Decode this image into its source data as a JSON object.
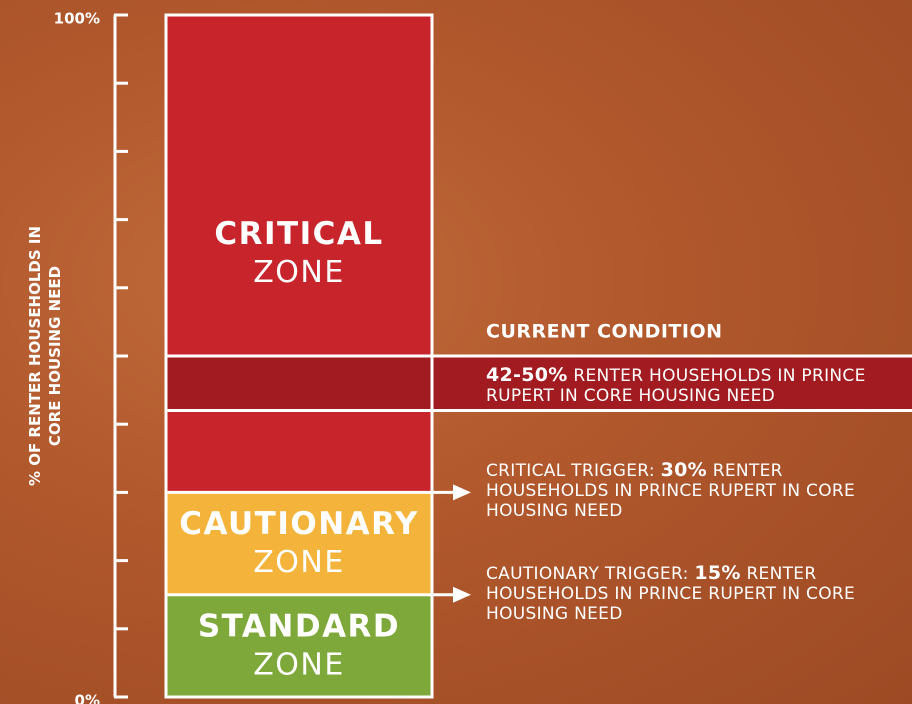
{
  "chart_data": {
    "type": "zones",
    "ylabel": [
      "% OF RENTER HOUSEHOLDS IN",
      "CORE HOUSING NEED"
    ],
    "ylim": [
      0,
      100
    ],
    "yticks": [
      {
        "value": 0,
        "label": "0%"
      },
      {
        "value": 100,
        "label": "100%"
      }
    ],
    "minor_yticks": [
      10,
      20,
      30,
      40,
      50,
      60,
      70,
      80,
      90
    ],
    "zones": [
      {
        "name": "STANDARD",
        "suffix": "ZONE",
        "from": 0,
        "to": 15,
        "color": "#7ea83a"
      },
      {
        "name": "CAUTIONARY",
        "suffix": "ZONE",
        "from": 15,
        "to": 30,
        "color": "#f4b33a"
      },
      {
        "name": "CRITICAL",
        "suffix": "ZONE",
        "from": 30,
        "to": 100,
        "color": "#c8242b"
      }
    ],
    "current": {
      "title": "CURRENT CONDITION",
      "from": 42,
      "to": 50,
      "value_label": "42-50%",
      "text": "RENTER HOUSEHOLDS IN PRINCE RUPERT IN CORE HOUSING NEED",
      "color": "#a11b20"
    },
    "triggers": [
      {
        "prefix": "CRITICAL TRIGGER:",
        "value": 30,
        "value_label": "30%",
        "text": "RENTER HOUSEHOLDS IN PRINCE RUPERT IN CORE HOUSING NEED"
      },
      {
        "prefix": "CAUTIONARY TRIGGER:",
        "value": 15,
        "value_label": "15%",
        "text": "RENTER HOUSEHOLDS IN PRINCE RUPERT IN CORE HOUSING NEED"
      }
    ]
  }
}
